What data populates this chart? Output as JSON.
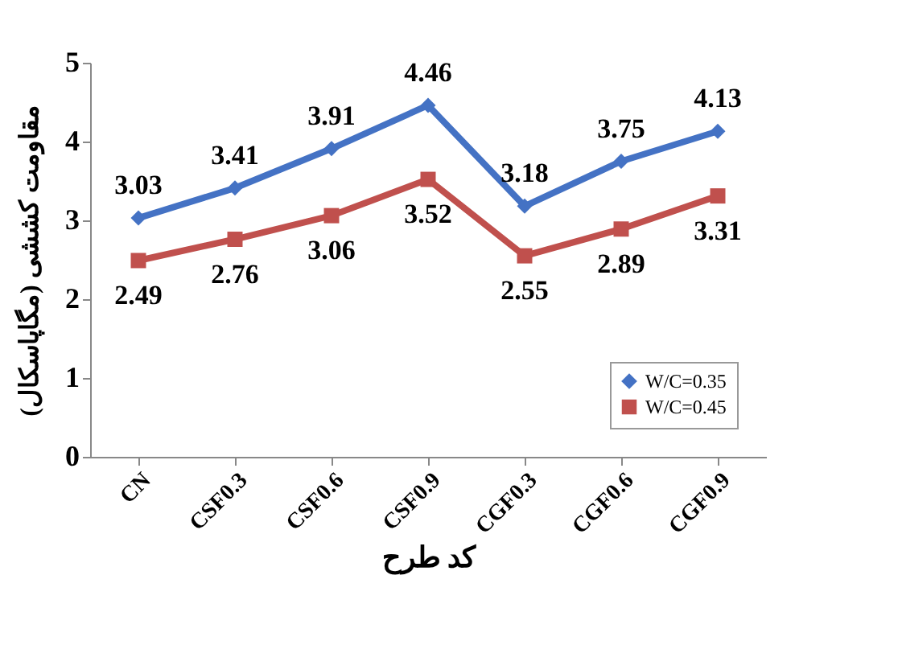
{
  "chart_data": {
    "type": "line",
    "xlabel": "کد طرح",
    "ylabel": "مقاومت کششی (مگاپاسکال)",
    "categories": [
      "CN",
      "CSF0.3",
      "CSF0.6",
      "CSF0.9",
      "CGF0.3",
      "CGF0.6",
      "CGF0.9"
    ],
    "series": [
      {
        "name": "W/C=0.35",
        "color": "#4472c4",
        "marker": "diamond",
        "values": [
          3.03,
          3.41,
          3.91,
          4.46,
          3.18,
          3.75,
          4.13
        ]
      },
      {
        "name": "W/C=0.45",
        "color": "#c0504d",
        "marker": "square",
        "values": [
          2.49,
          2.76,
          3.06,
          3.52,
          2.55,
          2.89,
          3.31
        ]
      }
    ],
    "ylim": [
      0,
      5
    ],
    "yticks": [
      0,
      1,
      2,
      3,
      4,
      5
    ],
    "grid": false,
    "legend": "bottom right",
    "data_labels": true
  }
}
